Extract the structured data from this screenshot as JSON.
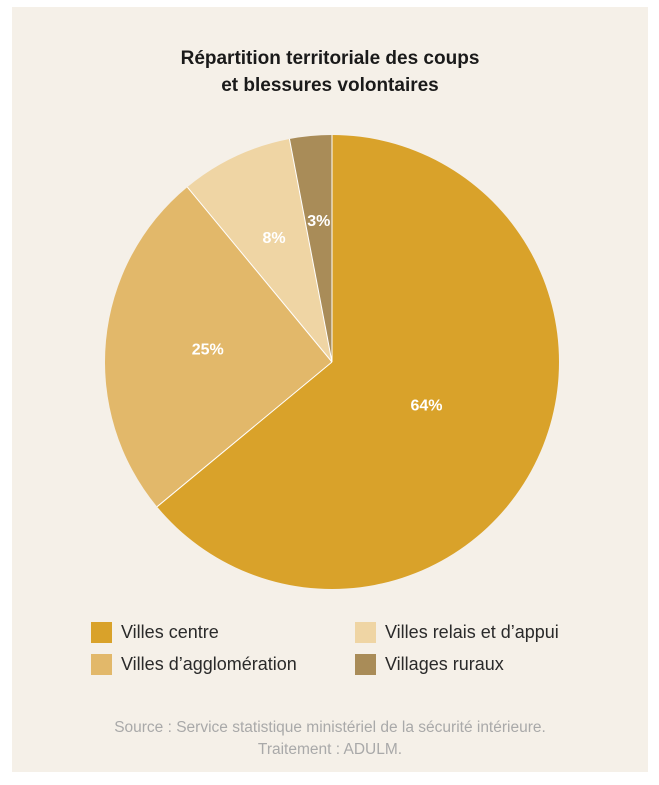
{
  "chart_data": {
    "type": "pie",
    "title": [
      "Répartition territoriale des coups",
      "et blessures volontaires"
    ],
    "slices": [
      {
        "name": "Villes centre",
        "value": 64,
        "label": "64%",
        "color": "#d9a22a"
      },
      {
        "name": "Villes d’agglomération",
        "value": 25,
        "label": "25%",
        "color": "#e2b86a"
      },
      {
        "name": "Villes relais et d’appui",
        "value": 8,
        "label": "8%",
        "color": "#efd5a4"
      },
      {
        "name": "Villages ruraux",
        "value": 3,
        "label": "3%",
        "color": "#a98c58"
      }
    ],
    "legend": {
      "placement": "bottom",
      "items": [
        "Villes centre",
        "Villes relais et d’appui",
        "Villes d’agglomération",
        "Villages ruraux"
      ]
    },
    "source": [
      "Source : Service statistique ministériel de la sécurité intérieure.",
      "Traitement : ADULM."
    ]
  },
  "colors": {
    "background": "#f5f0e8",
    "slice_label": "#ffffff"
  }
}
